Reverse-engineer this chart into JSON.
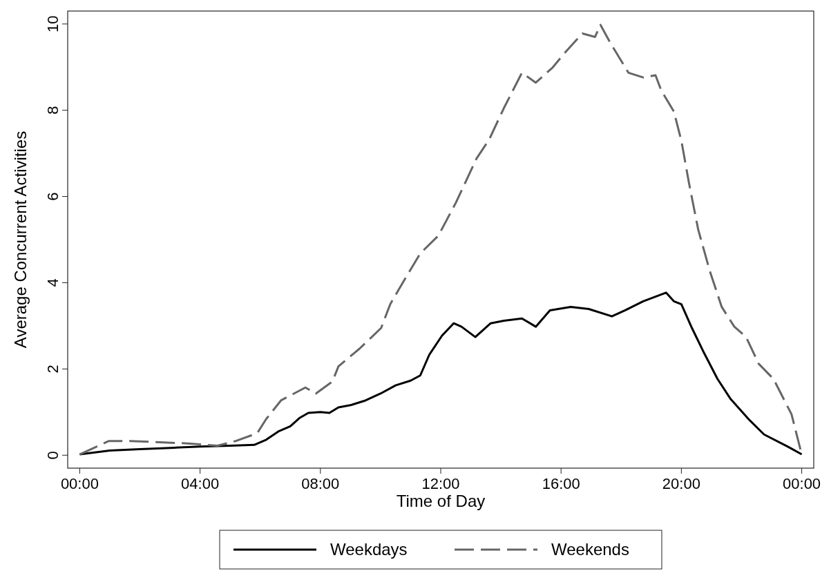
{
  "chart_data": {
    "type": "line",
    "xlabel": "Time of Day",
    "ylabel": "Average Concurrent Activities",
    "xlim": [
      -0.4,
      24.4
    ],
    "ylim": [
      -0.3,
      10.3
    ],
    "xticks": [
      {
        "value": 0,
        "label": "00:00"
      },
      {
        "value": 4,
        "label": "04:00"
      },
      {
        "value": 8,
        "label": "08:00"
      },
      {
        "value": 12,
        "label": "12:00"
      },
      {
        "value": 16,
        "label": "16:00"
      },
      {
        "value": 20,
        "label": "20:00"
      },
      {
        "value": 24,
        "label": "00:00"
      }
    ],
    "yticks": [
      0,
      2,
      4,
      6,
      8,
      10
    ],
    "grid": false,
    "legend": "bottom",
    "marker": "none",
    "series": [
      {
        "name": "Weekdays",
        "color": "#000000",
        "line_style": "solid",
        "x": [
          0,
          1,
          2,
          3,
          4,
          5,
          5.8,
          6.2,
          6.6,
          7,
          7.3,
          7.6,
          8,
          8.3,
          8.6,
          9,
          9.5,
          10,
          10.5,
          11,
          11.32,
          11.62,
          12.04,
          12.43,
          12.69,
          13.15,
          13.66,
          14.1,
          14.7,
          15.16,
          15.63,
          16.32,
          16.92,
          17.69,
          18.13,
          18.73,
          19.49,
          19.75,
          20,
          20.35,
          20.74,
          21.2,
          21.64,
          22.27,
          22.75,
          23.56,
          24
        ],
        "values": [
          0.02,
          0.11,
          0.14,
          0.17,
          0.2,
          0.22,
          0.24,
          0.36,
          0.55,
          0.67,
          0.86,
          0.98,
          1,
          0.98,
          1.11,
          1.16,
          1.27,
          1.43,
          1.62,
          1.73,
          1.85,
          2.33,
          2.77,
          3.06,
          2.98,
          2.74,
          3.06,
          3.12,
          3.17,
          2.98,
          3.36,
          3.44,
          3.39,
          3.22,
          3.36,
          3.57,
          3.77,
          3.57,
          3.5,
          2.95,
          2.39,
          1.77,
          1.3,
          0.81,
          0.48,
          0.19,
          0.02
        ]
      },
      {
        "name": "Weekends",
        "color": "#666666",
        "line_style": "dashed",
        "x": [
          0,
          0.97,
          1.67,
          2.66,
          3.68,
          4.58,
          5.19,
          5.9,
          6.2,
          6.69,
          7.5,
          7.85,
          8.4,
          8.6,
          9.3,
          10.02,
          10.32,
          10.72,
          11.32,
          11.92,
          12.5,
          13.19,
          13.61,
          14.1,
          14.7,
          15.16,
          15.72,
          16.11,
          16.71,
          17.13,
          17.31,
          17.64,
          18.24,
          18.73,
          19.14,
          19.33,
          19.75,
          20,
          20.25,
          20.56,
          20.95,
          21.34,
          21.76,
          22.15,
          22.57,
          23.06,
          23.66,
          24
        ],
        "values": [
          0.02,
          0.33,
          0.33,
          0.3,
          0.27,
          0.22,
          0.33,
          0.51,
          0.84,
          1.27,
          1.57,
          1.43,
          1.71,
          2.06,
          2.47,
          2.95,
          3.5,
          3.98,
          4.68,
          5.09,
          5.85,
          6.88,
          7.32,
          8.05,
          8.87,
          8.64,
          8.99,
          9.32,
          9.78,
          9.7,
          9.98,
          9.56,
          8.87,
          8.76,
          8.81,
          8.46,
          7.97,
          7.29,
          6.32,
          5.23,
          4.26,
          3.44,
          2.98,
          2.74,
          2.12,
          1.77,
          0.95,
          0.02
        ]
      }
    ]
  }
}
